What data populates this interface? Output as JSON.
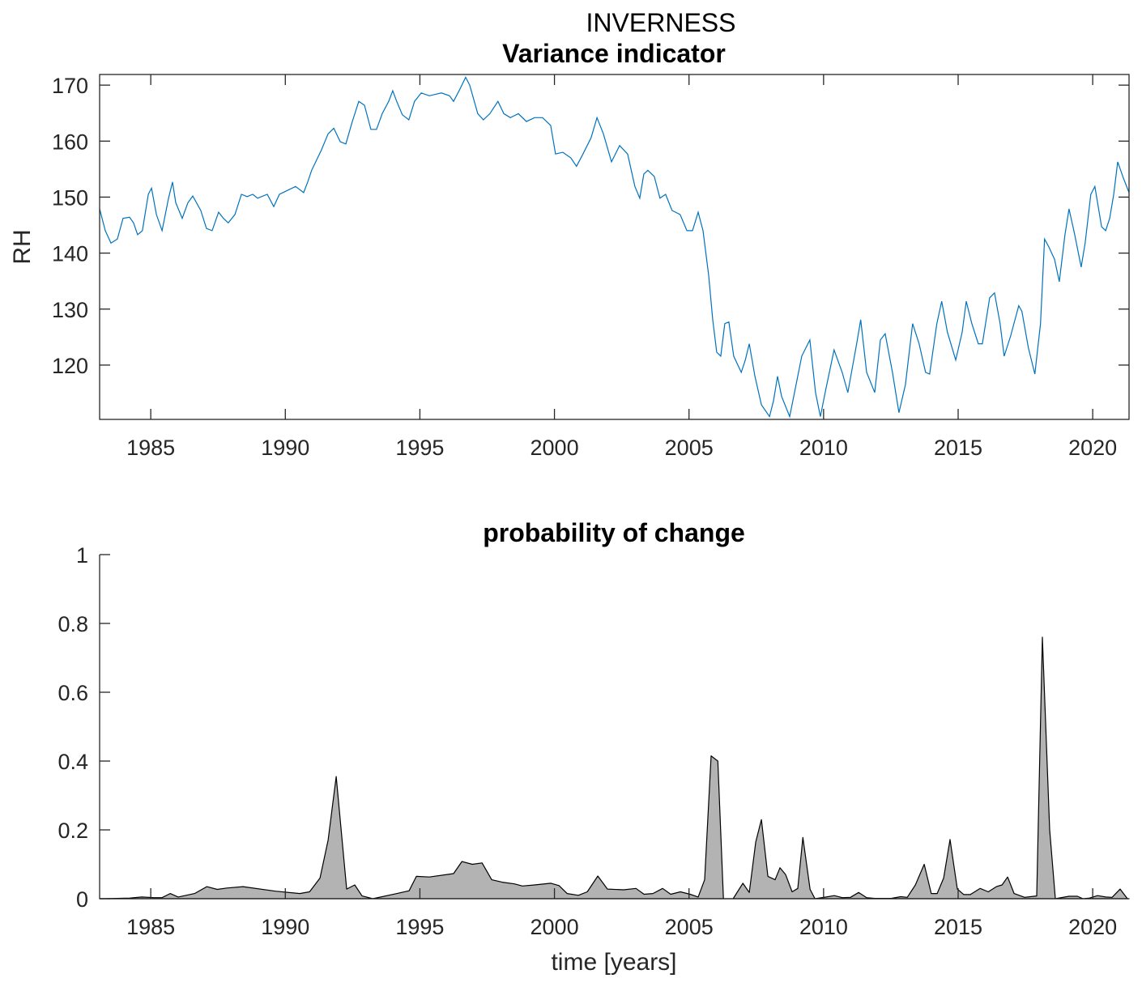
{
  "figure_title": "INVERNESS",
  "chart_data": [
    {
      "type": "line",
      "title": "Variance indicator",
      "xlabel": "",
      "ylabel": "RH",
      "xlim": [
        1983.1,
        2021.35
      ],
      "ylim": [
        110.3,
        171.9
      ],
      "xticks": [
        1985,
        1990,
        1995,
        2000,
        2005,
        2010,
        2015,
        2020
      ],
      "yticks": [
        120,
        130,
        140,
        150,
        160,
        170
      ],
      "color": "#0072BD",
      "grid": false,
      "x": [
        1983.1,
        1983.31,
        1983.52,
        1983.76,
        1983.97,
        1984.21,
        1984.36,
        1984.51,
        1984.69,
        1984.91,
        1985.03,
        1985.21,
        1985.42,
        1985.66,
        1985.81,
        1985.93,
        1986.17,
        1986.38,
        1986.56,
        1986.86,
        1987.07,
        1987.28,
        1987.52,
        1987.7,
        1987.88,
        1988.13,
        1988.37,
        1988.58,
        1988.79,
        1988.97,
        1989.33,
        1989.57,
        1989.78,
        1990.08,
        1990.38,
        1990.68,
        1990.83,
        1990.98,
        1991.13,
        1991.34,
        1991.59,
        1991.8,
        1992.04,
        1992.25,
        1992.49,
        1992.73,
        1992.94,
        1993.18,
        1993.39,
        1993.6,
        1993.84,
        1993.99,
        1994.14,
        1994.35,
        1994.59,
        1994.8,
        1995.05,
        1995.35,
        1995.8,
        1996.1,
        1996.25,
        1996.49,
        1996.7,
        1996.85,
        1997.15,
        1997.36,
        1997.6,
        1997.9,
        1998.12,
        1998.36,
        1998.66,
        1998.96,
        1999.26,
        1999.56,
        1999.86,
        2000.04,
        2000.31,
        2000.61,
        2000.82,
        2001.06,
        2001.36,
        2001.58,
        2001.82,
        2002.12,
        2002.42,
        2002.72,
        2002.99,
        2003.17,
        2003.32,
        2003.47,
        2003.71,
        2003.92,
        2004.13,
        2004.37,
        2004.67,
        2004.92,
        2005.13,
        2005.34,
        2005.52,
        2005.73,
        2005.88,
        2006.03,
        2006.18,
        2006.33,
        2006.48,
        2006.66,
        2006.94,
        2007.09,
        2007.24,
        2007.45,
        2007.69,
        2007.99,
        2008.14,
        2008.29,
        2008.44,
        2008.74,
        2008.89,
        2009.19,
        2009.49,
        2009.7,
        2009.88,
        2010.09,
        2010.39,
        2010.69,
        2010.9,
        2011.23,
        2011.38,
        2011.6,
        2011.9,
        2012.11,
        2012.29,
        2012.56,
        2012.8,
        2013.04,
        2013.31,
        2013.55,
        2013.79,
        2013.94,
        2014.21,
        2014.39,
        2014.6,
        2014.91,
        2015.15,
        2015.3,
        2015.51,
        2015.75,
        2015.9,
        2016.17,
        2016.35,
        2016.56,
        2016.71,
        2016.95,
        2017.25,
        2017.37,
        2017.61,
        2017.85,
        2018.06,
        2018.21,
        2018.37,
        2018.58,
        2018.76,
        2018.97,
        2019.12,
        2019.33,
        2019.57,
        2019.72,
        2019.93,
        2020.08,
        2020.33,
        2020.48,
        2020.63,
        2020.78,
        2020.93,
        2021.14,
        2021.35
      ],
      "y": [
        147.9,
        144.0,
        141.8,
        142.5,
        146.2,
        146.4,
        145.4,
        143.3,
        144.0,
        150.5,
        151.6,
        146.9,
        144.0,
        149.8,
        152.7,
        149.0,
        146.2,
        149.0,
        150.2,
        147.6,
        144.4,
        144.0,
        147.3,
        146.2,
        145.4,
        146.9,
        150.5,
        150.1,
        150.5,
        149.8,
        150.5,
        148.3,
        150.5,
        151.2,
        151.9,
        150.8,
        152.7,
        154.8,
        156.3,
        158.4,
        161.3,
        162.3,
        159.9,
        159.5,
        163.5,
        167.1,
        166.4,
        162.1,
        162.1,
        164.9,
        167.1,
        169.0,
        167.1,
        164.7,
        163.8,
        167.1,
        168.6,
        168.1,
        168.6,
        168.1,
        167.1,
        169.3,
        171.4,
        170.0,
        164.9,
        163.8,
        164.9,
        167.1,
        164.9,
        164.2,
        164.9,
        163.5,
        164.2,
        164.2,
        162.8,
        157.7,
        158.0,
        157.0,
        155.5,
        157.7,
        160.6,
        164.2,
        161.3,
        156.3,
        159.2,
        157.7,
        151.9,
        149.8,
        154.1,
        154.8,
        153.7,
        149.8,
        150.5,
        147.6,
        146.9,
        144.0,
        144.0,
        147.3,
        144.0,
        136.0,
        128.1,
        122.3,
        121.6,
        127.4,
        127.7,
        121.6,
        118.7,
        120.9,
        123.8,
        118.0,
        112.9,
        110.8,
        113.6,
        118.0,
        114.4,
        110.8,
        114.4,
        121.6,
        124.5,
        115.1,
        110.8,
        115.8,
        122.7,
        118.7,
        115.1,
        123.8,
        128.1,
        118.7,
        115.1,
        124.5,
        125.6,
        118.7,
        111.5,
        116.5,
        127.4,
        123.8,
        118.7,
        118.4,
        127.4,
        131.4,
        125.9,
        120.9,
        125.9,
        131.4,
        127.4,
        123.8,
        123.8,
        132.0,
        132.9,
        127.4,
        121.6,
        125.2,
        130.6,
        129.6,
        123.1,
        118.4,
        127.4,
        142.5,
        141.1,
        138.9,
        134.9,
        143.3,
        147.9,
        143.3,
        137.5,
        141.8,
        150.5,
        151.9,
        144.7,
        144.0,
        146.2,
        150.5,
        156.3,
        153.4,
        150.8
      ]
    },
    {
      "type": "area",
      "title": "probability of change",
      "xlabel": "time [years]",
      "ylabel": "",
      "xlim": [
        1983.1,
        2021.35
      ],
      "ylim": [
        0,
        1
      ],
      "xticks": [
        1985,
        1990,
        1995,
        2000,
        2005,
        2010,
        2015,
        2020
      ],
      "yticks": [
        0,
        0.2,
        0.4,
        0.6,
        0.8,
        1
      ],
      "ytick_labels": [
        "0",
        "0.2",
        "0.4",
        "0.6",
        "0.8",
        "1"
      ],
      "fill_color": "#B3B3B3",
      "edge_color": "#000000",
      "grid": false,
      "x": [
        1983.1,
        1984.22,
        1984.67,
        1985.12,
        1985.42,
        1985.72,
        1986.02,
        1986.63,
        1987.08,
        1987.47,
        1987.83,
        1988.43,
        1989.63,
        1990.54,
        1990.9,
        1991.29,
        1991.59,
        1991.89,
        1992.28,
        1992.58,
        1992.85,
        1993.25,
        1994.15,
        1994.6,
        1994.87,
        1995.35,
        1996.25,
        1996.56,
        1996.95,
        1997.31,
        1997.67,
        1998.06,
        1998.51,
        1998.81,
        1999.26,
        1999.87,
        2000.17,
        2000.47,
        2000.89,
        2001.22,
        2001.61,
        2001.97,
        2002.57,
        2003.03,
        2003.33,
        2003.66,
        2004.02,
        2004.32,
        2004.68,
        2005.04,
        2005.34,
        2005.58,
        2005.82,
        2006.07,
        2006.28,
        2006.64,
        2007.0,
        2007.24,
        2007.48,
        2007.69,
        2007.93,
        2008.2,
        2008.38,
        2008.59,
        2008.83,
        2009.04,
        2009.23,
        2009.5,
        2009.68,
        2010.1,
        2010.4,
        2010.7,
        2011.0,
        2011.3,
        2011.6,
        2011.9,
        2012.51,
        2012.87,
        2013.11,
        2013.41,
        2013.74,
        2014.0,
        2014.22,
        2014.46,
        2014.7,
        2014.97,
        2015.21,
        2015.45,
        2015.82,
        2016.12,
        2016.42,
        2016.63,
        2016.84,
        2017.08,
        2017.47,
        2017.92,
        2018.13,
        2018.4,
        2018.61,
        2019.12,
        2019.43,
        2019.64,
        2019.88,
        2020.18,
        2020.48,
        2020.72,
        2021.02,
        2021.29,
        2021.35
      ],
      "y": [
        0,
        0.002,
        0.005,
        0.003,
        0.003,
        0.015,
        0.005,
        0.015,
        0.035,
        0.027,
        0.031,
        0.035,
        0.022,
        0.015,
        0.02,
        0.06,
        0.17,
        0.355,
        0.028,
        0.04,
        0.008,
        0,
        0.015,
        0.023,
        0.065,
        0.063,
        0.073,
        0.108,
        0.1,
        0.104,
        0.055,
        0.048,
        0.043,
        0.037,
        0.04,
        0.045,
        0.038,
        0.015,
        0.01,
        0.02,
        0.066,
        0.028,
        0.026,
        0.03,
        0.013,
        0.015,
        0.03,
        0.013,
        0.02,
        0.013,
        0.005,
        0.055,
        0.415,
        0.4,
        0,
        0,
        0.045,
        0.018,
        0.165,
        0.23,
        0.065,
        0.055,
        0.09,
        0.07,
        0.02,
        0.03,
        0.178,
        0.027,
        0,
        0.005,
        0.009,
        0.003,
        0.004,
        0.018,
        0.003,
        0.001,
        0.001,
        0.006,
        0.004,
        0.04,
        0.1,
        0.015,
        0.015,
        0.06,
        0.172,
        0.028,
        0.012,
        0.012,
        0.03,
        0.02,
        0.035,
        0.04,
        0.063,
        0.015,
        0.004,
        0.008,
        0.76,
        0.2,
        0,
        0.007,
        0.007,
        0,
        0.002,
        0.009,
        0.005,
        0.004,
        0.028,
        0,
        0
      ]
    }
  ]
}
